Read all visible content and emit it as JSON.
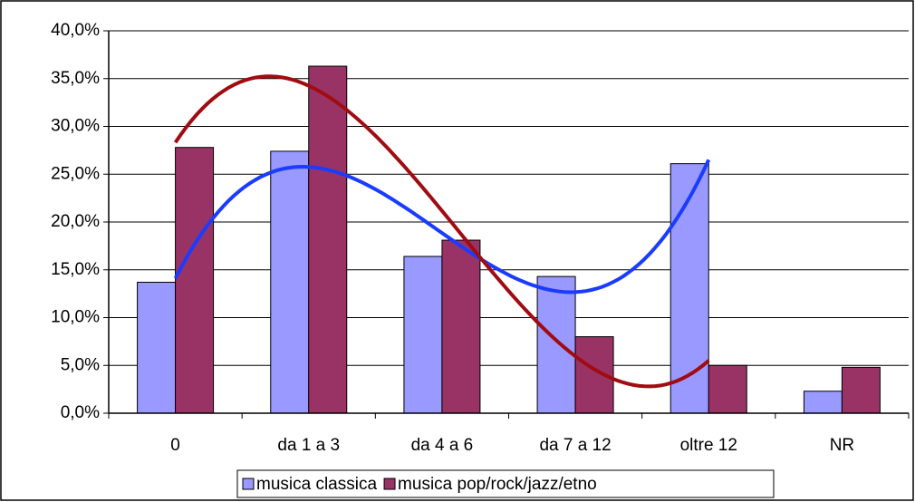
{
  "chart_data": {
    "type": "bar",
    "categories": [
      "0",
      "da 1 a 3",
      "da 4 a 6",
      "da 7 a 12",
      "oltre 12",
      "NR"
    ],
    "series": [
      {
        "name": "musica classica",
        "color": "#9999ff",
        "trend_color": "#1a3cff",
        "values": [
          13.7,
          27.4,
          16.4,
          14.3,
          26.1,
          2.3
        ]
      },
      {
        "name": "musica pop/rock/jazz/etno",
        "color": "#993366",
        "trend_color": "#a00c12",
        "values": [
          27.8,
          36.3,
          18.1,
          8.0,
          5.0,
          4.8
        ]
      }
    ],
    "ylim": [
      0,
      40
    ],
    "yticks": [
      {
        "value": 0,
        "label": "0,0%"
      },
      {
        "value": 5,
        "label": "5,0%"
      },
      {
        "value": 10,
        "label": "10,0%"
      },
      {
        "value": 15,
        "label": "15,0%"
      },
      {
        "value": 20,
        "label": "20,0%"
      },
      {
        "value": 25,
        "label": "25,0%"
      },
      {
        "value": 30,
        "label": "30,0%"
      },
      {
        "value": 35,
        "label": "35,0%"
      },
      {
        "value": 40,
        "label": "40,0%"
      }
    ],
    "grid": true,
    "legend": "bottom"
  }
}
